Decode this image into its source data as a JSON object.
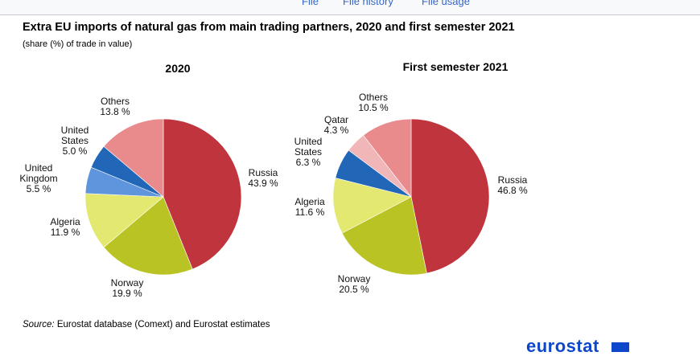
{
  "tabs": [
    {
      "label": "File"
    },
    {
      "label": "File history"
    },
    {
      "label": "File usage"
    }
  ],
  "chart_data": [
    {
      "type": "pie",
      "title": "2020",
      "slices": [
        {
          "label": "Russia",
          "value": 43.9,
          "display": "43.9 %",
          "color": "#c0343d"
        },
        {
          "label": "Norway",
          "value": 19.9,
          "display": "19.9 %",
          "color": "#b9c424"
        },
        {
          "label": "Algeria",
          "value": 11.9,
          "display": "11.9 %",
          "color": "#e3e871"
        },
        {
          "label": "United Kingdom",
          "value": 5.5,
          "display": "5.5 %",
          "color": "#5f95dd"
        },
        {
          "label": "United States",
          "value": 5.0,
          "display": "5.0 %",
          "color": "#2266b8"
        },
        {
          "label": "Others",
          "value": 13.8,
          "display": "13.8 %",
          "color": "#e98b8d"
        }
      ]
    },
    {
      "type": "pie",
      "title": "First semester 2021",
      "slices": [
        {
          "label": "Russia",
          "value": 46.8,
          "display": "46.8 %",
          "color": "#c0343d"
        },
        {
          "label": "Norway",
          "value": 20.5,
          "display": "20.5 %",
          "color": "#b9c424"
        },
        {
          "label": "Algeria",
          "value": 11.6,
          "display": "11.6 %",
          "color": "#e3e871"
        },
        {
          "label": "United States",
          "value": 6.3,
          "display": "6.3 %",
          "color": "#2266b8"
        },
        {
          "label": "Qatar",
          "value": 4.3,
          "display": "4.3 %",
          "color": "#f1b7b8"
        },
        {
          "label": "Others",
          "value": 10.5,
          "display": "10.5 %",
          "color": "#e98b8d"
        }
      ]
    }
  ],
  "header": {
    "title": "Extra EU imports of natural gas from main trading partners, 2020 and first semester 2021",
    "subtitle": "(share (%) of trade in value)"
  },
  "source": {
    "label": "Source:",
    "text": "Eurostat database (Comext) and Eurostat estimates"
  },
  "logo": {
    "text": "eurostat"
  }
}
